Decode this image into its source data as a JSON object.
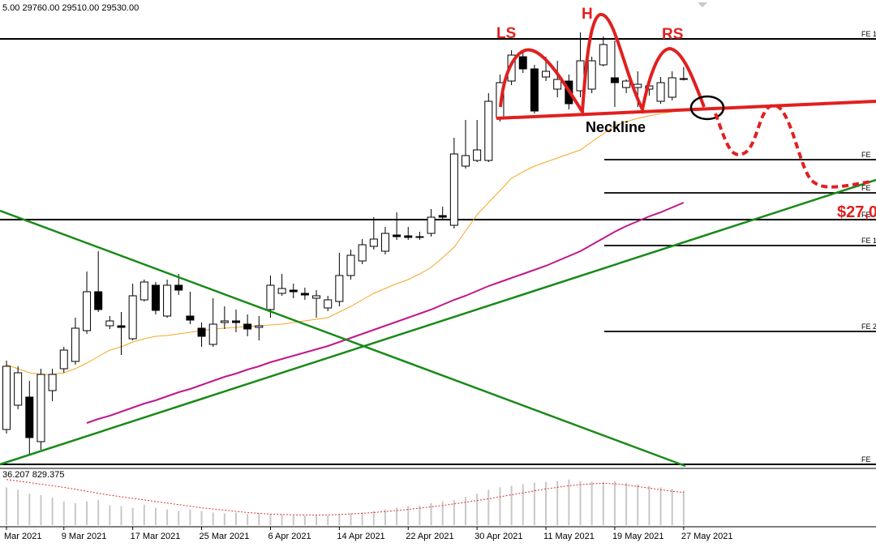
{
  "chart_data": {
    "type": "candlestick",
    "header": "5.00 29760.00 29510.00 29530.00",
    "categories": [
      "Mar 2021",
      null,
      null,
      null,
      null,
      "9 Mar 2021",
      null,
      null,
      null,
      null,
      null,
      "17 Mar 2021",
      null,
      null,
      null,
      null,
      null,
      "25 Mar 2021",
      null,
      null,
      null,
      null,
      null,
      "6 Apr 2021",
      null,
      null,
      null,
      null,
      null,
      "14 Apr 2021",
      null,
      null,
      null,
      null,
      null,
      "22 Apr 2021",
      null,
      null,
      null,
      null,
      null,
      "30 Apr 2021",
      null,
      null,
      null,
      null,
      null,
      "11 May 2021",
      null,
      null,
      null,
      null,
      null,
      "19 May 2021",
      null,
      null,
      null,
      null,
      null,
      "27 May 2021"
    ],
    "open": [
      23050,
      23500,
      23650,
      22825,
      23770,
      24175,
      24310,
      24880,
      25600,
      24970,
      24970,
      24730,
      25450,
      25720,
      25150,
      25720,
      25150,
      24925,
      24625,
      25030,
      25060,
      25000,
      24940,
      25270,
      25570,
      25630,
      25570,
      25480,
      25300,
      25420,
      25900,
      26170,
      26440,
      26350,
      26650,
      26635,
      26620,
      26680,
      27010,
      26830,
      27925,
      28030,
      28030,
      28825,
      29500,
      29950,
      29725,
      29575,
      29350,
      29500,
      29320,
      29350,
      29800,
      29560,
      29380,
      29380,
      29350,
      29125,
      29200,
      29545
    ],
    "high": [
      24325,
      24220,
      23950,
      24175,
      24175,
      24580,
      25120,
      25975,
      26350,
      25150,
      25225,
      25750,
      25825,
      25780,
      25825,
      25930,
      25600,
      25030,
      25480,
      25330,
      25270,
      25180,
      25150,
      25900,
      25930,
      25750,
      25675,
      25630,
      25525,
      26320,
      26380,
      26575,
      26980,
      26800,
      27070,
      26800,
      26710,
      27130,
      27175,
      28450,
      28780,
      28780,
      29275,
      29620,
      30070,
      30070,
      29800,
      29950,
      29875,
      29620,
      30400,
      29950,
      30325,
      30250,
      29530,
      29680,
      29500,
      29575,
      29680,
      29760
    ],
    "low": [
      22975,
      23425,
      22600,
      22675,
      23575,
      24100,
      24250,
      24820,
      25225,
      24910,
      24430,
      24700,
      25420,
      25180,
      25120,
      25540,
      25000,
      24580,
      24580,
      24910,
      24850,
      24775,
      24700,
      25120,
      25525,
      25480,
      25450,
      25120,
      25240,
      25330,
      25825,
      26110,
      26380,
      26290,
      26560,
      26560,
      26560,
      26620,
      26950,
      26770,
      27880,
      28000,
      28000,
      28750,
      29425,
      29650,
      28900,
      29500,
      29200,
      28975,
      29200,
      29275,
      29770,
      29020,
      29275,
      29020,
      29230,
      29080,
      29140,
      29510
    ],
    "close": [
      24220,
      24100,
      22900,
      24070,
      24070,
      24520,
      24925,
      25600,
      25270,
      25060,
      24940,
      25525,
      25780,
      25255,
      25720,
      25630,
      25075,
      24775,
      25000,
      25060,
      25030,
      24910,
      24970,
      25720,
      25660,
      25600,
      25540,
      25525,
      25450,
      25900,
      26275,
      26470,
      26575,
      26680,
      26620,
      26605,
      26605,
      26980,
      26980,
      28150,
      28120,
      28225,
      29125,
      29470,
      29980,
      29725,
      28945,
      29680,
      29530,
      29080,
      29875,
      29875,
      30175,
      29470,
      29500,
      29440,
      29410,
      29470,
      29560,
      29530
    ],
    "ylim": [
      22375,
      31000
    ],
    "series": [
      {
        "color": "#f5a623",
        "values": [
          24250,
          24175,
          24100,
          24070,
          24070,
          24100,
          24175,
          24280,
          24400,
          24520,
          24580,
          24670,
          24730,
          24775,
          24790,
          24820,
          24850,
          24880,
          24910,
          24925,
          24940,
          24955,
          24970,
          24985,
          25000,
          25030,
          25060,
          25090,
          25120,
          25225,
          25330,
          25450,
          25570,
          25660,
          25750,
          25825,
          25930,
          26050,
          26230,
          26425,
          26725,
          27025,
          27250,
          27475,
          27700,
          27820,
          27925,
          28000,
          28075,
          28150,
          28225,
          28375,
          28525,
          28675,
          28750,
          28810,
          28855,
          28900,
          28930,
          28975
        ]
      },
      {
        "color": "#c0188a",
        "values": [
          null,
          null,
          null,
          null,
          null,
          null,
          null,
          23170,
          23245,
          23305,
          23380,
          23455,
          23530,
          23590,
          23665,
          23740,
          23800,
          23875,
          23950,
          24025,
          24085,
          24160,
          24220,
          24295,
          24355,
          24415,
          24475,
          24535,
          24595,
          24670,
          24745,
          24820,
          24895,
          24970,
          25045,
          25120,
          25195,
          25270,
          25360,
          25450,
          25525,
          25615,
          25705,
          25780,
          25855,
          25930,
          26005,
          26080,
          26170,
          26260,
          26350,
          26470,
          26590,
          26710,
          26815,
          26905,
          26995,
          27070,
          27160,
          27250
        ]
      }
    ],
    "levels": [
      {
        "value": 30280,
        "label": "FE 1"
      },
      {
        "value": 28045,
        "label": "FE"
      },
      {
        "value": 27430,
        "label": "FE"
      },
      {
        "value": 26935,
        "label": "FE"
      },
      {
        "value": 26455,
        "label": "FE 1"
      },
      {
        "value": 24865,
        "label": "FE 2"
      },
      {
        "value": 22405,
        "label": "FE"
      }
    ],
    "annotations": [
      "LS",
      "H",
      "RS",
      "Neckline",
      "$27,0"
    ],
    "volume": {
      "header": "36.207 829.375",
      "color": "#c8c8c8",
      "average_color": "#e03030",
      "ylim": [
        0,
        1400
      ],
      "values": [
        960,
        900,
        800,
        760,
        700,
        600,
        560,
        600,
        640,
        500,
        480,
        440,
        520,
        440,
        400,
        360,
        400,
        360,
        320,
        300,
        320,
        280,
        300,
        280,
        280,
        240,
        240,
        260,
        240,
        280,
        300,
        320,
        360,
        400,
        440,
        480,
        500,
        560,
        600,
        640,
        720,
        800,
        900,
        960,
        1000,
        1040,
        1080,
        1100,
        1120,
        1160,
        1120,
        1100,
        1100,
        1120,
        1080,
        1040,
        1000,
        960,
        920,
        880
      ],
      "average": [
        1160,
        1120,
        1080,
        1040,
        1000,
        960,
        910,
        860,
        810,
        760,
        720,
        680,
        640,
        600,
        560,
        520,
        480,
        440,
        410,
        380,
        350,
        320,
        300,
        280,
        270,
        260,
        255,
        255,
        260,
        270,
        285,
        300,
        320,
        345,
        370,
        400,
        430,
        465,
        500,
        540,
        580,
        625,
        670,
        720,
        770,
        820,
        870,
        920,
        960,
        1000,
        1030,
        1050,
        1060,
        1050,
        1020,
        980,
        940,
        900,
        860,
        830
      ]
    }
  }
}
